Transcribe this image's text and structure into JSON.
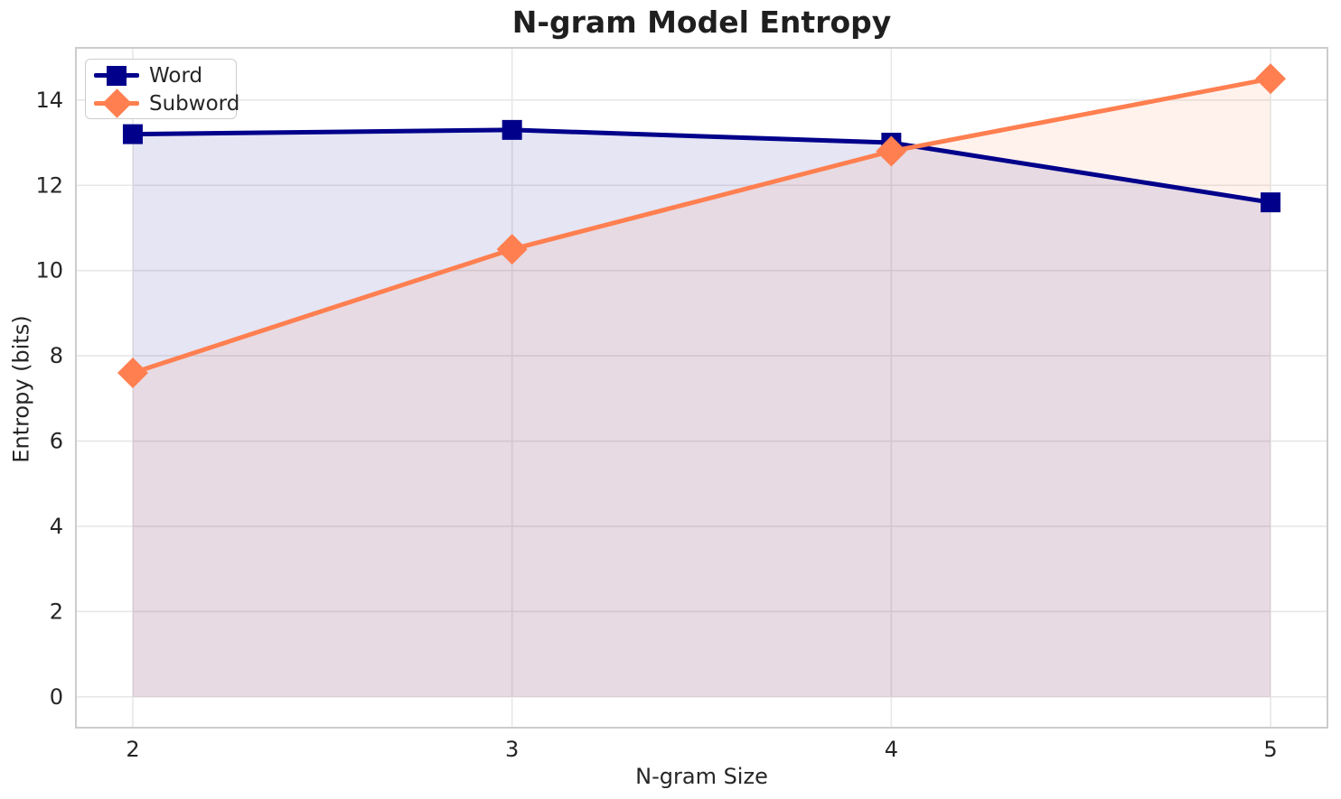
{
  "chart_data": {
    "type": "line",
    "title": "N-gram Model Entropy",
    "xlabel": "N-gram Size",
    "ylabel": "Entropy (bits)",
    "x": [
      2,
      3,
      4,
      5
    ],
    "xticks": [
      2,
      3,
      4,
      5
    ],
    "yticks": [
      0,
      2,
      4,
      6,
      8,
      10,
      12,
      14
    ],
    "xlim": [
      1.85,
      5.15
    ],
    "ylim": [
      -0.725,
      15.225
    ],
    "grid": true,
    "legend_position": "upper-left",
    "fill_baseline": 0,
    "series": [
      {
        "name": "Word",
        "values": [
          13.2,
          13.3,
          13.0,
          11.6
        ],
        "color": "#00008B",
        "marker": "square",
        "fill_alpha": 0.1
      },
      {
        "name": "Subword",
        "values": [
          7.6,
          10.5,
          12.8,
          14.5
        ],
        "color": "#FF7F50",
        "marker": "diamond",
        "fill_alpha": 0.1
      }
    ]
  }
}
